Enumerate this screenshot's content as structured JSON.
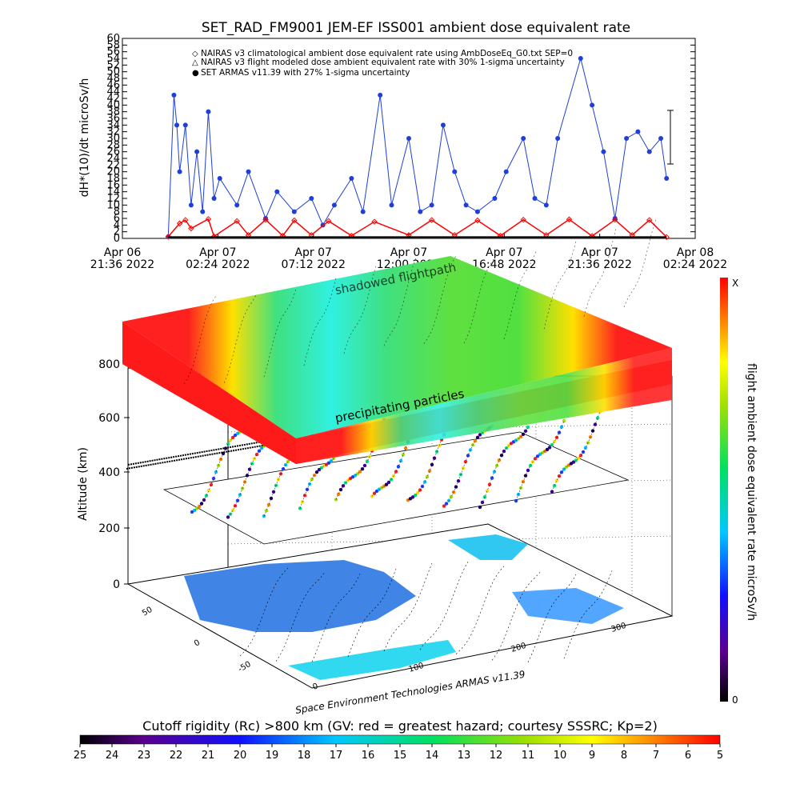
{
  "top_chart": {
    "title": "SET_RAD_FM9001  JEM-EF ISS001 ambient dose equivalent rate",
    "ylabel": "dH*(10)/dt microSv/h",
    "legend": [
      {
        "symbol": "◇",
        "color": "#ff0000",
        "text": "NAIRAS v3 climatological ambient dose equivalent rate using AmbDoseEq_G0.txt SEP=0"
      },
      {
        "symbol": "△",
        "color": "#000000",
        "text": "NAIRAS v3 flight modeled dose ambient equivalent rate with 30% 1-sigma uncertainty"
      },
      {
        "symbol": "●",
        "color": "#1f3fd6",
        "text": "SET ARMAS v11.39 with 27% 1-sigma uncertainty"
      }
    ],
    "x_ticks": [
      {
        "date": "Apr 06",
        "time": "21:36 2022"
      },
      {
        "date": "Apr 07",
        "time": "02:24 2022"
      },
      {
        "date": "Apr 07",
        "time": "07:12 2022"
      },
      {
        "date": "Apr 07",
        "time": "12:00 2022"
      },
      {
        "date": "Apr 07",
        "time": "16:48 2022"
      },
      {
        "date": "Apr 07",
        "time": "21:36 2022"
      },
      {
        "date": "Apr 08",
        "time": "02:24 2022"
      }
    ],
    "overlap_text": "shadowed flightpath"
  },
  "chart_data": [
    {
      "type": "scatter",
      "title": "SET_RAD_FM9001  JEM-EF ISS001 ambient dose equivalent rate",
      "ylabel": "dH*(10)/dt microSv/h",
      "xlabel": "",
      "x_range": [
        "2022-04-06 21:36",
        "2022-04-08 02:24"
      ],
      "ylim": [
        0,
        60
      ],
      "yticks": [
        0,
        2,
        4,
        6,
        8,
        10,
        12,
        14,
        16,
        18,
        20,
        22,
        24,
        26,
        28,
        30,
        32,
        34,
        36,
        38,
        40,
        42,
        44,
        46,
        48,
        50,
        52,
        54,
        56,
        58,
        60
      ],
      "series": [
        {
          "name": "NAIRAS v3 climatological ambient dose equivalent rate using AmbDoseEq_G0.txt SEP=0",
          "color": "#ff0000",
          "marker": "diamond",
          "note_values": "oscillating between about 0.5 and 6 microSv/h",
          "values": [
            [
              0.08,
              0.5
            ],
            [
              0.1,
              4.5
            ],
            [
              0.11,
              5.5
            ],
            [
              0.12,
              3
            ],
            [
              0.15,
              5.8
            ],
            [
              0.16,
              0.6
            ],
            [
              0.2,
              5.2
            ],
            [
              0.22,
              1
            ],
            [
              0.25,
              5.6
            ],
            [
              0.28,
              0.8
            ],
            [
              0.3,
              5.4
            ],
            [
              0.33,
              1
            ],
            [
              0.36,
              5.2
            ],
            [
              0.4,
              0.8
            ],
            [
              0.44,
              5
            ],
            [
              0.5,
              1
            ],
            [
              0.54,
              5.5
            ],
            [
              0.58,
              1
            ],
            [
              0.62,
              5.4
            ],
            [
              0.66,
              0.8
            ],
            [
              0.7,
              5.6
            ],
            [
              0.74,
              1
            ],
            [
              0.78,
              5.7
            ],
            [
              0.82,
              0.7
            ],
            [
              0.86,
              5.6
            ],
            [
              0.89,
              1
            ],
            [
              0.92,
              5.5
            ],
            [
              0.95,
              0.4
            ]
          ]
        },
        {
          "name": "SET ARMAS v11.39 with 27% 1-sigma uncertainty",
          "color": "#1f3fd6",
          "marker": "circle",
          "values": [
            [
              0.08,
              0.5
            ],
            [
              0.09,
              43
            ],
            [
              0.095,
              34
            ],
            [
              0.1,
              20
            ],
            [
              0.11,
              34
            ],
            [
              0.12,
              10
            ],
            [
              0.13,
              26
            ],
            [
              0.14,
              8
            ],
            [
              0.15,
              38
            ],
            [
              0.16,
              12
            ],
            [
              0.17,
              18
            ],
            [
              0.2,
              10
            ],
            [
              0.22,
              20
            ],
            [
              0.25,
              6
            ],
            [
              0.27,
              14
            ],
            [
              0.3,
              8
            ],
            [
              0.33,
              12
            ],
            [
              0.35,
              4
            ],
            [
              0.37,
              10
            ],
            [
              0.4,
              18
            ],
            [
              0.42,
              8
            ],
            [
              0.45,
              43
            ],
            [
              0.47,
              10
            ],
            [
              0.5,
              30
            ],
            [
              0.52,
              8
            ],
            [
              0.54,
              10
            ],
            [
              0.56,
              34
            ],
            [
              0.58,
              20
            ],
            [
              0.6,
              10
            ],
            [
              0.62,
              8
            ],
            [
              0.65,
              12
            ],
            [
              0.67,
              20
            ],
            [
              0.7,
              30
            ],
            [
              0.72,
              12
            ],
            [
              0.74,
              10
            ],
            [
              0.76,
              30
            ],
            [
              0.8,
              54
            ],
            [
              0.82,
              40
            ],
            [
              0.84,
              26
            ],
            [
              0.86,
              6
            ],
            [
              0.88,
              30
            ],
            [
              0.9,
              32
            ],
            [
              0.92,
              26
            ],
            [
              0.94,
              30
            ],
            [
              0.95,
              18
            ]
          ]
        }
      ]
    },
    {
      "type": "heatmap",
      "title": "Cutoff rigidity (Rc) >800 km (GV: red = greatest hazard; courtesy SSSRC; Kp=2)",
      "zlabel": "Altitude (km)",
      "zticks": [
        0,
        200,
        400,
        600,
        800
      ],
      "lat_ticks": [
        "50",
        "0",
        "-50"
      ],
      "lon_ticks": [
        "0",
        "100",
        "200",
        "300"
      ],
      "surface_labels": [
        "shadowed flightpath",
        "precipitating particles"
      ]
    }
  ],
  "right_colorbar": {
    "label": "flight ambient dose equivalent rate microSv/h",
    "top": "X",
    "bottom": "0"
  },
  "bottom_colorbar": {
    "label": "Cutoff rigidity (Rc) >800 km (GV: red = greatest hazard; courtesy SSSRC; Kp=2)",
    "ticks": [
      "25",
      "24",
      "23",
      "22",
      "21",
      "20",
      "19",
      "18",
      "17",
      "16",
      "15",
      "14",
      "13",
      "12",
      "11",
      "10",
      "9",
      "8",
      "7",
      "6",
      "5"
    ]
  },
  "credit": "Space Environment Technologies ARMAS v11.39",
  "colors": {
    "armas_blue": "#1f3fd6",
    "nairas_red": "#ff0000",
    "hazard_red": "#ff1a1a"
  }
}
